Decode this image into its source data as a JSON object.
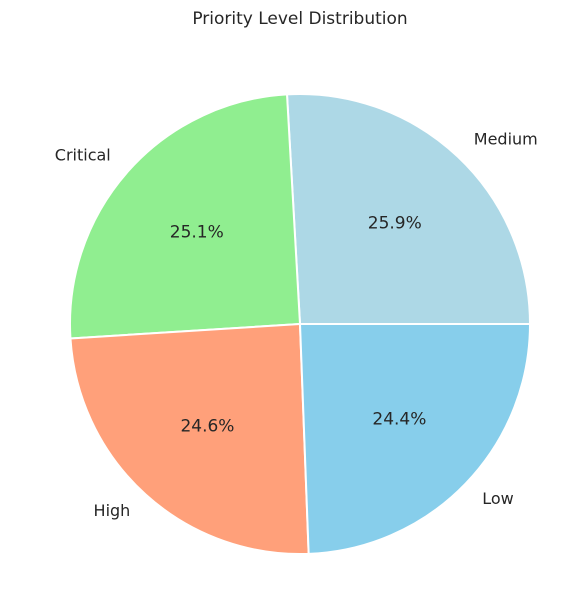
{
  "chart_data": {
    "type": "pie",
    "title": "Priority Level Distribution",
    "categories": [
      "Medium",
      "Critical",
      "High",
      "Low"
    ],
    "values": [
      25.9,
      25.1,
      24.6,
      24.4
    ],
    "percent_labels": [
      "25.9%",
      "25.1%",
      "24.6%",
      "24.4%"
    ],
    "colors": [
      "#add8e6",
      "#90ee90",
      "#ffa07a",
      "#87ceeb"
    ],
    "start_angle_deg": 0,
    "direction": "counterclockwise",
    "legend": "none"
  }
}
